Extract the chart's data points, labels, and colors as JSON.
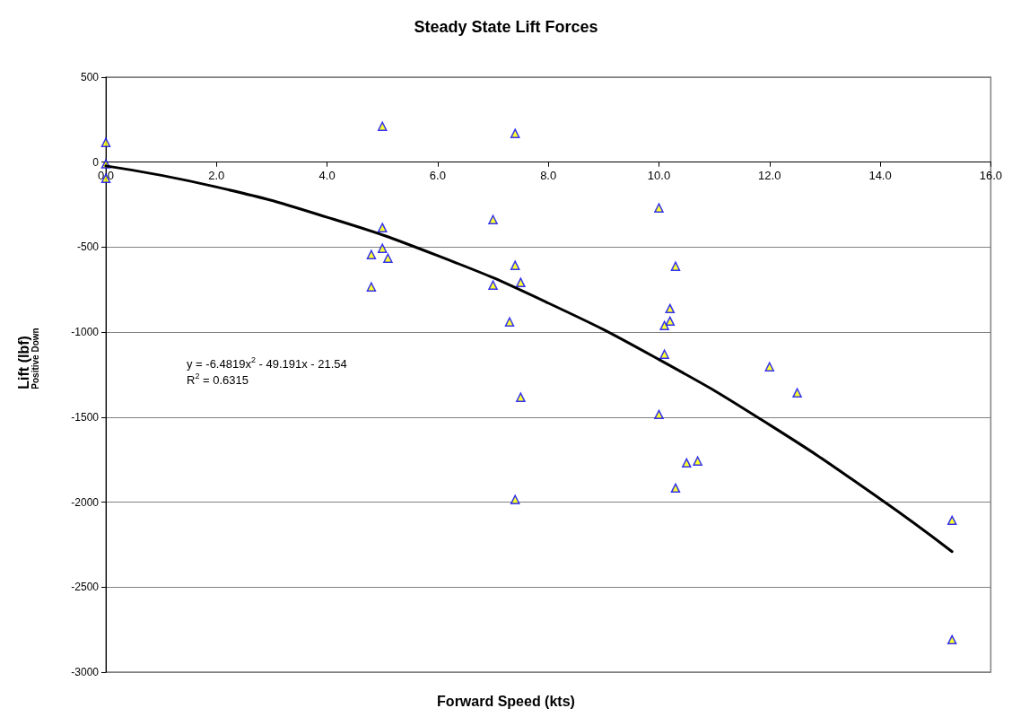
{
  "chart_data": {
    "type": "scatter",
    "title": "Steady State Lift Forces",
    "xlabel": "Forward Speed (kts)",
    "ylabel": "Lift (lbf)\nPositive Down",
    "xlim": [
      0,
      16
    ],
    "xticks": [
      {
        "value": 0,
        "label": "0.0"
      },
      {
        "value": 2,
        "label": "2.0"
      },
      {
        "value": 4,
        "label": "4.0"
      },
      {
        "value": 6,
        "label": "6.0"
      },
      {
        "value": 8,
        "label": "8.0"
      },
      {
        "value": 10,
        "label": "10.0"
      },
      {
        "value": 12,
        "label": "12.0"
      },
      {
        "value": 14,
        "label": "14.0"
      },
      {
        "value": 16,
        "label": "16.0"
      }
    ],
    "ylim": [
      -3000,
      500
    ],
    "yticks": [
      -3000,
      -2500,
      -2000,
      -1500,
      -1000,
      -500,
      0,
      500
    ],
    "grid": "y",
    "series": [
      {
        "color": "#ffff00",
        "marker": "triangle",
        "x": [
          0,
          0,
          0,
          5.0,
          7.4,
          4.8,
          5.0,
          5.0,
          5.1,
          4.8,
          7.0,
          7.0,
          7.4,
          7.5,
          7.3,
          7.5,
          7.4,
          10.0,
          10.3,
          10.2,
          10.2,
          10.1,
          10.1,
          10.0,
          10.5,
          10.7,
          10.3,
          12.0,
          12.5,
          15.3,
          15.3
        ],
        "values": [
          116,
          -10,
          -95,
          211,
          169,
          -544,
          -385,
          -507,
          -565,
          -734,
          -338,
          -723,
          -607,
          -707,
          -940,
          -1383,
          -1985,
          -269,
          -612,
          -861,
          -935,
          -961,
          -1130,
          -1484,
          -1769,
          -1758,
          -1917,
          -1204,
          -1357,
          -2107,
          -2809
        ]
      },
      {
        "type": "line",
        "color": "#000000",
        "marker": "none",
        "line_style": "solid",
        "x": [
          0,
          2,
          4,
          6,
          8,
          10,
          12,
          14,
          15.3
        ],
        "values": [
          -22,
          -146,
          -324,
          -550,
          -829,
          -1161,
          -1545,
          -1981,
          -2291
        ]
      }
    ],
    "annotations": [
      "y = -6.4819x$^{2}$ - 49.191x - 21.54",
      "R$^{2}$ = 0.6315"
    ]
  }
}
